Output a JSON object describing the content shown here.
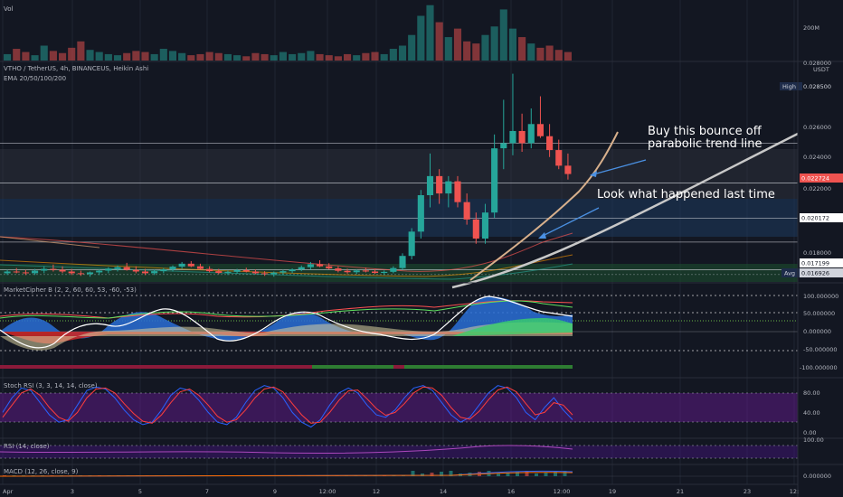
{
  "panes": {
    "volume": {
      "label": "Vol",
      "ticks": [
        "200M"
      ]
    },
    "price": {
      "title": "VTHO / TetherUS, 4h, BINANCEUS, Heikin Ashi",
      "subtitle": "EMA 20/50/100/200",
      "currency": "USDT",
      "ticks": [
        "0.028000",
        "0.026000",
        "0.024000",
        "0.022000",
        "0.018000"
      ],
      "tags": {
        "high_label": "High",
        "high_value": "0.028500",
        "last_value": "0.022724",
        "level1_value": "0.020172",
        "level2_value": "0.017199",
        "avg_label": "Avg",
        "avg_value": "0.016926"
      },
      "annotation_1": "Buy this bounce off",
      "annotation_2": "parabolic trend line",
      "annotation_3": "Look what happened last time"
    },
    "marketcipher": {
      "label": "MarketCipher B (2, 2, 60, 60, 53, -60, -53)",
      "ticks": [
        "100.000000",
        "50.000000",
        "0.000000",
        "-50.000000",
        "-100.000000"
      ]
    },
    "stochrsi": {
      "label": "Stoch RSI (3, 3, 14, 14, close)",
      "ticks": [
        "80.00",
        "40.00",
        "0.00"
      ]
    },
    "rsi": {
      "label": "RSI (14, close)",
      "ticks": [
        "100.00"
      ]
    },
    "macd": {
      "label": "MACD (12, 26, close, 9)",
      "ticks": [
        "0.000000"
      ]
    }
  },
  "time_axis": [
    "Apr",
    "3",
    "5",
    "7",
    "9",
    "12:00",
    "12",
    "14",
    "16",
    "12:00",
    "19",
    "21",
    "23",
    "12:"
  ],
  "colors": {
    "up": "#26a69a",
    "down": "#ef5350",
    "bg": "#131722",
    "grid": "#1f2433"
  },
  "chart_data": [
    {
      "type": "candlestick",
      "title": "VTHO / TetherUS, 4h, BINANCEUS, Heikin Ashi",
      "ylabel": "USDT",
      "ylim": [
        0.0165,
        0.029
      ],
      "candles": [
        [
          0.017,
          0.0172,
          0.0169,
          0.0171
        ],
        [
          0.0171,
          0.0173,
          0.017,
          0.01705
        ],
        [
          0.01705,
          0.0172,
          0.0169,
          0.017
        ],
        [
          0.017,
          0.01725,
          0.0169,
          0.01715
        ],
        [
          0.01715,
          0.0174,
          0.017,
          0.01725
        ],
        [
          0.01725,
          0.0175,
          0.0171,
          0.0172
        ],
        [
          0.0172,
          0.0174,
          0.017,
          0.0171
        ],
        [
          0.0171,
          0.01725,
          0.0169,
          0.017
        ],
        [
          0.017,
          0.01715,
          0.01685,
          0.01695
        ],
        [
          0.01695,
          0.0171,
          0.0168,
          0.01705
        ],
        [
          0.01705,
          0.0172,
          0.0169,
          0.01715
        ],
        [
          0.01715,
          0.01735,
          0.017,
          0.01725
        ],
        [
          0.01725,
          0.01745,
          0.0171,
          0.01735
        ],
        [
          0.01735,
          0.0176,
          0.01715,
          0.0172
        ],
        [
          0.0172,
          0.0174,
          0.017,
          0.0171
        ],
        [
          0.0171,
          0.01725,
          0.0169,
          0.017
        ],
        [
          0.017,
          0.0172,
          0.0169,
          0.01712
        ],
        [
          0.01712,
          0.0173,
          0.017,
          0.01722
        ],
        [
          0.01722,
          0.01745,
          0.0171,
          0.01738
        ],
        [
          0.01738,
          0.01765,
          0.01725,
          0.01755
        ],
        [
          0.01755,
          0.0177,
          0.01735,
          0.0174
        ],
        [
          0.0174,
          0.01755,
          0.0172,
          0.01725
        ],
        [
          0.01725,
          0.0174,
          0.01705,
          0.01712
        ],
        [
          0.01712,
          0.01725,
          0.01695,
          0.01702
        ],
        [
          0.01702,
          0.01716,
          0.0169,
          0.01708
        ],
        [
          0.01708,
          0.01725,
          0.01698,
          0.01718
        ],
        [
          0.01718,
          0.01732,
          0.01705,
          0.0171
        ],
        [
          0.0171,
          0.01722,
          0.01695,
          0.017
        ],
        [
          0.017,
          0.01712,
          0.01685,
          0.01695
        ],
        [
          0.01695,
          0.0171,
          0.0168,
          0.01704
        ],
        [
          0.01704,
          0.0172,
          0.01692,
          0.01712
        ],
        [
          0.01712,
          0.01728,
          0.017,
          0.01722
        ],
        [
          0.01722,
          0.01745,
          0.01712,
          0.01735
        ],
        [
          0.01735,
          0.01765,
          0.0172,
          0.01752
        ],
        [
          0.01752,
          0.01775,
          0.01735,
          0.0174
        ],
        [
          0.0174,
          0.01758,
          0.01722,
          0.01728
        ],
        [
          0.01728,
          0.0174,
          0.01705,
          0.01714
        ],
        [
          0.01714,
          0.01726,
          0.01698,
          0.01706
        ],
        [
          0.01706,
          0.01722,
          0.01695,
          0.01716
        ],
        [
          0.01716,
          0.01732,
          0.01705,
          0.0171
        ],
        [
          0.0171,
          0.01724,
          0.01696,
          0.01702
        ],
        [
          0.01702,
          0.01716,
          0.0169,
          0.01708
        ],
        [
          0.01708,
          0.0174,
          0.017,
          0.0173
        ],
        [
          0.0173,
          0.01815,
          0.0172,
          0.018
        ],
        [
          0.018,
          0.0196,
          0.0178,
          0.0194
        ],
        [
          0.0194,
          0.0218,
          0.019,
          0.0215
        ],
        [
          0.0215,
          0.0239,
          0.0208,
          0.0226
        ],
        [
          0.0226,
          0.023,
          0.021,
          0.0216
        ],
        [
          0.0216,
          0.0226,
          0.0208,
          0.0223
        ],
        [
          0.0223,
          0.0226,
          0.0208,
          0.0211
        ],
        [
          0.0211,
          0.0216,
          0.0198,
          0.0201
        ],
        [
          0.0201,
          0.0205,
          0.0187,
          0.019
        ],
        [
          0.019,
          0.021,
          0.0187,
          0.0205
        ],
        [
          0.0205,
          0.025,
          0.0202,
          0.0242
        ],
        [
          0.0242,
          0.027,
          0.023,
          0.0245
        ],
        [
          0.0245,
          0.0285,
          0.0238,
          0.0252
        ],
        [
          0.0252,
          0.0262,
          0.024,
          0.0245
        ],
        [
          0.0245,
          0.0265,
          0.0242,
          0.0256
        ],
        [
          0.0256,
          0.0272,
          0.0248,
          0.0249
        ],
        [
          0.0249,
          0.0256,
          0.0237,
          0.0241
        ],
        [
          0.0241,
          0.0247,
          0.023,
          0.0232
        ],
        [
          0.0232,
          0.0239,
          0.0224,
          0.02272
        ]
      ],
      "level_lines": [
        0.0245,
        0.0222,
        0.02017,
        0.0188,
        0.0172
      ],
      "avg": 0.016926
    },
    {
      "type": "bar",
      "title": "Vol",
      "values": [
        30,
        55,
        40,
        25,
        70,
        45,
        35,
        60,
        90,
        50,
        40,
        30,
        25,
        35,
        45,
        40,
        30,
        55,
        45,
        35,
        25,
        30,
        40,
        35,
        30,
        25,
        20,
        35,
        30,
        25,
        40,
        30,
        35,
        45,
        30,
        25,
        20,
        30,
        25,
        35,
        40,
        30,
        55,
        70,
        120,
        210,
        260,
        180,
        110,
        150,
        90,
        80,
        120,
        160,
        240,
        150,
        110,
        80,
        60,
        70,
        50,
        40
      ],
      "ylim": [
        0,
        280
      ]
    },
    {
      "type": "line",
      "title": "Stoch RSI (3, 3, 14, 14, close)",
      "ylim": [
        0,
        100
      ],
      "series": [
        {
          "values": [
            40,
            70,
            90,
            85,
            60,
            35,
            20,
            25,
            55,
            85,
            92,
            88,
            70,
            45,
            25,
            15,
            20,
            45,
            75,
            90,
            85,
            65,
            40,
            20,
            15,
            30,
            60,
            85,
            95,
            90,
            70,
            40,
            20,
            10,
            25,
            55,
            80,
            90,
            80,
            55,
            35,
            30,
            45,
            70,
            90,
            95,
            85,
            60,
            35,
            20,
            30,
            55,
            80,
            95,
            90,
            70,
            40,
            25,
            50,
            70,
            45,
            25
          ]
        },
        {
          "values": [
            30,
            55,
            80,
            88,
            75,
            50,
            30,
            22,
            40,
            70,
            88,
            90,
            80,
            58,
            38,
            22,
            18,
            35,
            60,
            82,
            88,
            75,
            55,
            32,
            20,
            25,
            45,
            70,
            88,
            92,
            82,
            58,
            35,
            18,
            20,
            40,
            65,
            84,
            86,
            68,
            48,
            34,
            40,
            58,
            80,
            92,
            90,
            75,
            50,
            30,
            26,
            42,
            66,
            86,
            92,
            82,
            58,
            35,
            40,
            60,
            55,
            35
          ]
        }
      ]
    }
  ]
}
